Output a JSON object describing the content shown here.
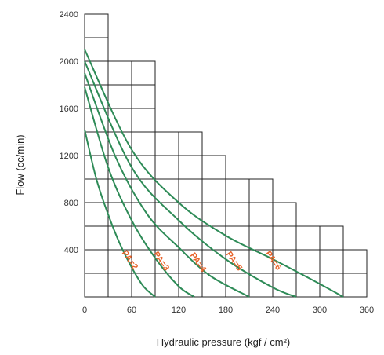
{
  "chart_data": {
    "type": "line",
    "title": "",
    "xlabel": "Hydraulic pressure  (kgf / cm²)",
    "ylabel": "Flow  (cc/min)",
    "xlim": [
      0,
      360
    ],
    "ylim": [
      0,
      2400
    ],
    "x_ticks": [
      "0",
      "60",
      "120",
      "180",
      "240",
      "300",
      "360"
    ],
    "y_ticks": [
      "400",
      "800",
      "1200",
      "1600",
      "2000",
      "2400"
    ],
    "grid": "stepped",
    "colors": {
      "line": "#2e8b57",
      "labels": "#e8632a",
      "grid": "#222222"
    },
    "series": [
      {
        "name": "PA=2",
        "x": [
          0,
          15,
          30,
          45,
          60,
          75,
          90
        ],
        "y": [
          1420,
          1000,
          700,
          450,
          250,
          90,
          0
        ]
      },
      {
        "name": "PA=3",
        "x": [
          0,
          30,
          60,
          90,
          120,
          140
        ],
        "y": [
          1780,
          1100,
          650,
          330,
          90,
          0
        ]
      },
      {
        "name": "PA=4",
        "x": [
          0,
          40,
          80,
          120,
          160,
          210
        ],
        "y": [
          1900,
          1180,
          700,
          420,
          180,
          0
        ]
      },
      {
        "name": "PA=5",
        "x": [
          0,
          60,
          120,
          180,
          240,
          270
        ],
        "y": [
          2000,
          1100,
          650,
          320,
          80,
          0
        ]
      },
      {
        "name": "PA=6",
        "x": [
          0,
          60,
          120,
          180,
          240,
          300,
          330
        ],
        "y": [
          2100,
          1250,
          800,
          520,
          320,
          110,
          0
        ]
      }
    ]
  }
}
